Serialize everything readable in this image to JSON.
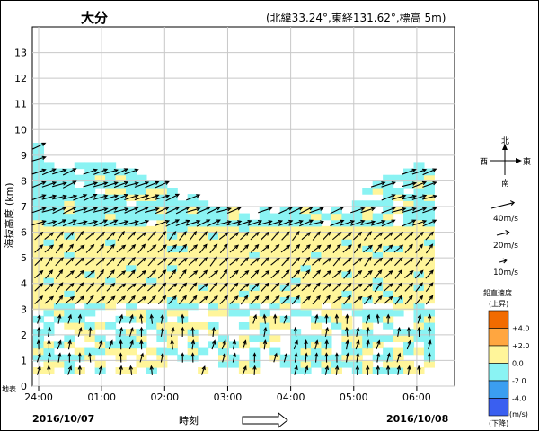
{
  "header": {
    "station": "大分",
    "location": "(北緯33.24°,東経131.62°,標高 5m)"
  },
  "chart_data": {
    "type": "wind-profile",
    "xlabel": "時刻",
    "ylabel": "海抜高度 (km)",
    "ylim": [
      0,
      14
    ],
    "yticks": [
      "0",
      "1",
      "2",
      "3",
      "4",
      "5",
      "6",
      "7",
      "8",
      "9",
      "10",
      "11",
      "12",
      "13"
    ],
    "xticks": [
      "24:00",
      "01:00",
      "02:00",
      "03:00",
      "04:00",
      "05:00",
      "06:00"
    ],
    "xlim_hours": [
      -0.1,
      6.6
    ],
    "grid": true,
    "date_start": "2016/10/07",
    "date_end": "2016/10/08",
    "surface_label": "地表",
    "time_arrow": "⟹",
    "extent": {
      "description": "hourly-ish columns, 10-minute steps from 24:00 to 06:10",
      "top_km": [
        9.4,
        8.8,
        8.8,
        8.5,
        8.8,
        8.8,
        8.8,
        8.8,
        8.5,
        8.5,
        8.2,
        8.0,
        8.0,
        7.8,
        7.3,
        7.4,
        7.2,
        7.0,
        7.0,
        7.0,
        6.7,
        6.5,
        6.9,
        6.8,
        6.9,
        6.9,
        7.0,
        6.9,
        6.7,
        6.9,
        6.8,
        7.3,
        7.6,
        7.9,
        8.2,
        8.3,
        8.4,
        8.6,
        8.8
      ],
      "low_layer_top_km": 3.2
    },
    "vectors": {
      "layers": [
        {
          "band": "upper",
          "from_km": 6.3,
          "to_km": 9.4,
          "direction": "east-northeast",
          "speed_ms": 20,
          "vertical_speed": "about 0 (cyan)"
        },
        {
          "band": "middle",
          "from_km": 3.3,
          "to_km": 6.3,
          "direction": "northeast",
          "speed_ms": 15,
          "vertical_speed": "slightly upward (yellow)"
        },
        {
          "band": "lower",
          "from_km": 0.6,
          "to_km": 3.2,
          "direction": "north",
          "speed_ms": 8,
          "vertical_speed": "mixed"
        }
      ]
    }
  },
  "compass": {
    "north": "北",
    "south": "南",
    "east": "東",
    "west": "西"
  },
  "speed_legend": [
    "40m/s",
    "20m/s",
    "10m/s"
  ],
  "color_legend": {
    "title": "鉛直速度",
    "up": "(上昇)",
    "down": "(下降)",
    "unit": "(m/s)",
    "labels": [
      "+4.0",
      "+2.0",
      "0.0",
      "-2.0",
      "-4.0"
    ],
    "colors": [
      "#f26b00",
      "#ffa640",
      "#fff59a",
      "#8af3f3",
      "#3b9ef0",
      "#3a5ff0"
    ]
  }
}
